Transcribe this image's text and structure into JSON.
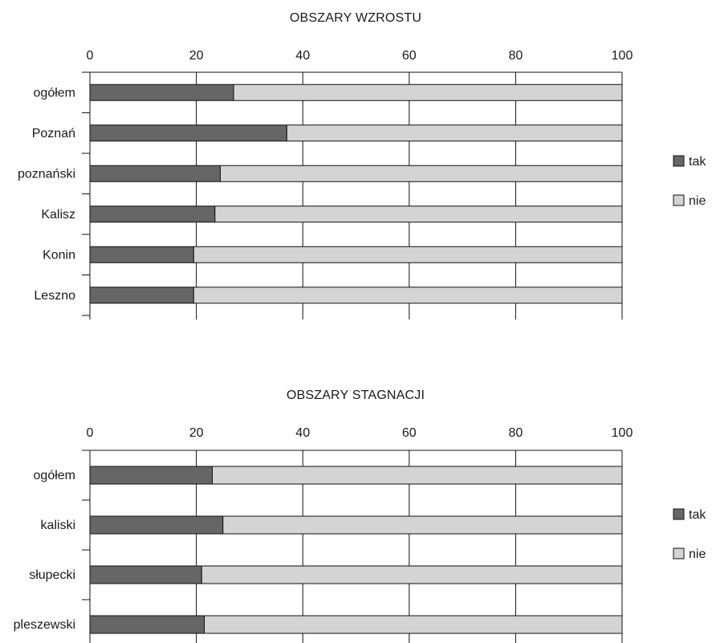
{
  "chart_data": [
    {
      "type": "bar",
      "orientation": "horizontal",
      "stacked": true,
      "title": "OBSZARY WZROSTU",
      "categories": [
        "ogółem",
        "Poznań",
        "poznański",
        "Kalisz",
        "Konin",
        "Leszno"
      ],
      "series": [
        {
          "name": "tak",
          "values": [
            27,
            37,
            24.5,
            23.5,
            19.5,
            19.5
          ],
          "color": "#666666"
        },
        {
          "name": "nie",
          "values": [
            73,
            63,
            75.5,
            76.5,
            80.5,
            80.5
          ],
          "color": "#d4d4d4"
        }
      ],
      "xlim": [
        0,
        100
      ],
      "xticks": [
        "0",
        "20",
        "40",
        "60",
        "80",
        "100"
      ],
      "grid": true,
      "legend": "right"
    },
    {
      "type": "bar",
      "orientation": "horizontal",
      "stacked": true,
      "title": "OBSZARY STAGNACJI",
      "categories": [
        "ogółem",
        "kaliski",
        "słupecki",
        "pleszewski"
      ],
      "series": [
        {
          "name": "tak",
          "values": [
            23,
            25,
            21,
            21.5
          ],
          "color": "#666666"
        },
        {
          "name": "nie",
          "values": [
            77,
            75,
            79,
            78.5
          ],
          "color": "#d4d4d4"
        }
      ],
      "xlim": [
        0,
        100
      ],
      "xticks": [
        "0",
        "20",
        "40",
        "60",
        "80",
        "100"
      ],
      "grid": true,
      "legend": "right"
    }
  ]
}
